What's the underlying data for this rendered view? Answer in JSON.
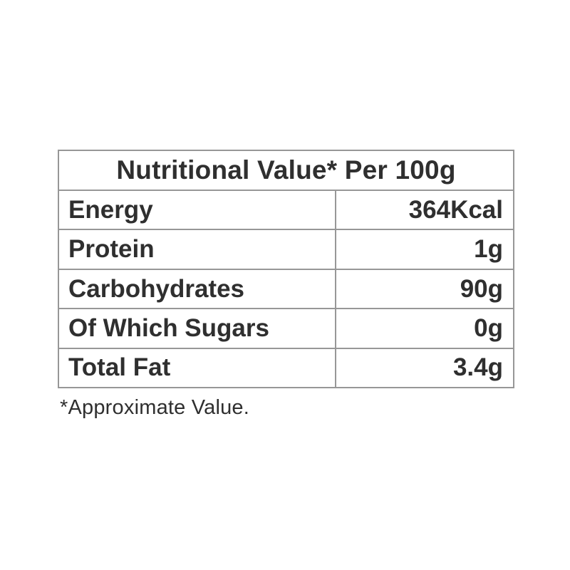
{
  "colors": {
    "background": "#ffffff",
    "text": "#2f2f2f",
    "border": "#979797"
  },
  "table": {
    "header": "Nutritional Value* Per 100g",
    "columns": [
      "nutrient",
      "amount_per_100g"
    ],
    "rows": [
      {
        "label": "Energy",
        "value": "364Kcal"
      },
      {
        "label": "Protein",
        "value": "1g"
      },
      {
        "label": "Carbohydrates",
        "value": "90g"
      },
      {
        "label": "Of Which Sugars",
        "value": "0g"
      },
      {
        "label": "Total Fat",
        "value": "3.4g"
      }
    ]
  },
  "footnote": "*Approximate Value."
}
